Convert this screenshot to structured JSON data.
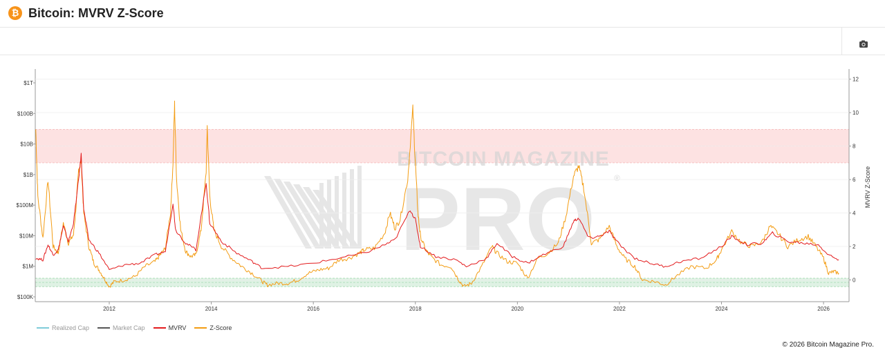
{
  "header": {
    "title": "Bitcoin: MVRV Z-Score",
    "logo_glyph": "₿",
    "logo_color": "#f7931a"
  },
  "toolbar": {
    "camera_icon": "camera-icon"
  },
  "watermark": {
    "top_text": "BITCOIN MAGAZINE",
    "main_text": "PRO",
    "mark": "®"
  },
  "legend": {
    "items": [
      {
        "label": "Realized Cap",
        "color": "#7ecbd9",
        "visible": false
      },
      {
        "label": "Market Cap",
        "color": "#555555",
        "visible": false
      },
      {
        "label": "MVRV",
        "color": "#e31a1c",
        "visible": true
      },
      {
        "label": "Z-Score",
        "color": "#f39c12",
        "visible": true
      }
    ]
  },
  "footer": {
    "copyright": "© 2026 Bitcoin Magazine Pro."
  },
  "chart_data": {
    "type": "line",
    "x_range": [
      2010.55,
      2026.5
    ],
    "x_ticks": [
      "2012",
      "2014",
      "2016",
      "2018",
      "2020",
      "2022",
      "2024",
      "2026"
    ],
    "left_axis": {
      "scale": "log",
      "ticks": [
        "$100K",
        "$1M",
        "$10M",
        "$100M",
        "$1B",
        "$10B",
        "$100B",
        "$1T"
      ]
    },
    "right_axis": {
      "label": "MVRV Z-Score",
      "range": [
        -1.3,
        12.4
      ],
      "ticks": [
        "0",
        "2",
        "4",
        "6",
        "8",
        "10",
        "12"
      ]
    },
    "zones": [
      {
        "name": "overvalued",
        "from": 7,
        "to": 9,
        "color": "#fde2e2"
      },
      {
        "name": "undervalued",
        "from": -0.4,
        "to": 0.1,
        "color": "#dff2e4"
      }
    ],
    "series": [
      {
        "name": "Z-Score",
        "color": "#f39c12",
        "points": [
          [
            2010.56,
            9
          ],
          [
            2010.6,
            5
          ],
          [
            2010.7,
            2.5
          ],
          [
            2010.8,
            6
          ],
          [
            2010.9,
            2
          ],
          [
            2011.0,
            1.6
          ],
          [
            2011.1,
            3.4
          ],
          [
            2011.2,
            2.2
          ],
          [
            2011.3,
            2.7
          ],
          [
            2011.35,
            4.4
          ],
          [
            2011.4,
            6.6
          ],
          [
            2011.45,
            7.1
          ],
          [
            2011.5,
            4
          ],
          [
            2011.6,
            2
          ],
          [
            2011.7,
            1
          ],
          [
            2011.8,
            0.6
          ],
          [
            2011.9,
            0.1
          ],
          [
            2012.0,
            -0.4
          ],
          [
            2012.1,
            -0.1
          ],
          [
            2012.3,
            0
          ],
          [
            2012.5,
            0.2
          ],
          [
            2012.7,
            0.8
          ],
          [
            2012.9,
            1.1
          ],
          [
            2013.0,
            1.5
          ],
          [
            2013.1,
            1.9
          ],
          [
            2013.2,
            4
          ],
          [
            2013.25,
            7
          ],
          [
            2013.28,
            10.5
          ],
          [
            2013.32,
            6
          ],
          [
            2013.4,
            3
          ],
          [
            2013.5,
            1.7
          ],
          [
            2013.6,
            1.4
          ],
          [
            2013.7,
            1.5
          ],
          [
            2013.8,
            3
          ],
          [
            2013.9,
            6.5
          ],
          [
            2013.92,
            9.2
          ],
          [
            2013.97,
            5
          ],
          [
            2014.05,
            3
          ],
          [
            2014.2,
            2
          ],
          [
            2014.4,
            1.3
          ],
          [
            2014.6,
            0.8
          ],
          [
            2014.8,
            0.4
          ],
          [
            2015.0,
            -0.1
          ],
          [
            2015.1,
            -0.3
          ],
          [
            2015.3,
            -0.2
          ],
          [
            2015.5,
            -0.2
          ],
          [
            2015.7,
            0
          ],
          [
            2015.9,
            0.4
          ],
          [
            2016.1,
            0.6
          ],
          [
            2016.3,
            0.7
          ],
          [
            2016.5,
            1.2
          ],
          [
            2016.7,
            1.3
          ],
          [
            2016.9,
            1.6
          ],
          [
            2017.0,
            1.8
          ],
          [
            2017.2,
            1.9
          ],
          [
            2017.4,
            2.8
          ],
          [
            2017.5,
            4
          ],
          [
            2017.6,
            3.1
          ],
          [
            2017.7,
            3.6
          ],
          [
            2017.85,
            6
          ],
          [
            2017.95,
            10.2
          ],
          [
            2018.0,
            7
          ],
          [
            2018.05,
            4
          ],
          [
            2018.1,
            2.6
          ],
          [
            2018.2,
            1.8
          ],
          [
            2018.3,
            1.4
          ],
          [
            2018.5,
            0.9
          ],
          [
            2018.7,
            0.8
          ],
          [
            2018.85,
            0
          ],
          [
            2018.95,
            -0.4
          ],
          [
            2019.1,
            -0.2
          ],
          [
            2019.3,
            0.8
          ],
          [
            2019.5,
            2
          ],
          [
            2019.6,
            1.6
          ],
          [
            2019.8,
            1.1
          ],
          [
            2020.0,
            1
          ],
          [
            2020.2,
            0.1
          ],
          [
            2020.4,
            1.3
          ],
          [
            2020.6,
            1.6
          ],
          [
            2020.8,
            2.2
          ],
          [
            2020.95,
            3.8
          ],
          [
            2021.1,
            6.2
          ],
          [
            2021.2,
            6.8
          ],
          [
            2021.3,
            5.5
          ],
          [
            2021.45,
            2.2
          ],
          [
            2021.6,
            2.4
          ],
          [
            2021.8,
            3.2
          ],
          [
            2021.95,
            2
          ],
          [
            2022.1,
            1.3
          ],
          [
            2022.3,
            0.8
          ],
          [
            2022.45,
            0
          ],
          [
            2022.7,
            -0.1
          ],
          [
            2022.9,
            -0.3
          ],
          [
            2023.1,
            0.2
          ],
          [
            2023.4,
            0.8
          ],
          [
            2023.7,
            0.7
          ],
          [
            2023.9,
            1.2
          ],
          [
            2024.0,
            1.8
          ],
          [
            2024.2,
            2.9
          ],
          [
            2024.4,
            2.2
          ],
          [
            2024.6,
            2
          ],
          [
            2024.8,
            2.3
          ],
          [
            2024.95,
            3.2
          ],
          [
            2025.1,
            2.8
          ],
          [
            2025.3,
            2
          ],
          [
            2025.5,
            2.4
          ],
          [
            2025.7,
            2.6
          ],
          [
            2025.85,
            2
          ],
          [
            2026.0,
            1.3
          ],
          [
            2026.1,
            0.4
          ],
          [
            2026.2,
            0.5
          ],
          [
            2026.3,
            0.4
          ]
        ]
      },
      {
        "name": "MVRV",
        "color": "#e31a1c",
        "points": [
          [
            2010.56,
            1.3
          ],
          [
            2010.7,
            1.2
          ],
          [
            2010.8,
            2.1
          ],
          [
            2010.9,
            1.5
          ],
          [
            2011.0,
            1.8
          ],
          [
            2011.1,
            3.2
          ],
          [
            2011.2,
            2.3
          ],
          [
            2011.3,
            3.4
          ],
          [
            2011.4,
            6
          ],
          [
            2011.45,
            7.5
          ],
          [
            2011.5,
            4.2
          ],
          [
            2011.6,
            2.4
          ],
          [
            2011.8,
            1.6
          ],
          [
            2012.0,
            0.6
          ],
          [
            2012.3,
            0.9
          ],
          [
            2012.6,
            1
          ],
          [
            2012.9,
            1.5
          ],
          [
            2013.1,
            1.7
          ],
          [
            2013.25,
            4.6
          ],
          [
            2013.3,
            3
          ],
          [
            2013.5,
            2.2
          ],
          [
            2013.7,
            1.8
          ],
          [
            2013.9,
            5.8
          ],
          [
            2013.97,
            3.4
          ],
          [
            2014.2,
            2.3
          ],
          [
            2014.5,
            1.6
          ],
          [
            2014.8,
            1.1
          ],
          [
            2015.0,
            0.7
          ],
          [
            2015.5,
            0.8
          ],
          [
            2016.0,
            1
          ],
          [
            2016.5,
            1.3
          ],
          [
            2017.0,
            1.6
          ],
          [
            2017.4,
            2.1
          ],
          [
            2017.6,
            2.4
          ],
          [
            2017.9,
            4.2
          ],
          [
            2018.0,
            3.6
          ],
          [
            2018.1,
            2
          ],
          [
            2018.4,
            1.4
          ],
          [
            2018.8,
            1.2
          ],
          [
            2019.0,
            0.8
          ],
          [
            2019.4,
            1.3
          ],
          [
            2019.6,
            2.2
          ],
          [
            2019.9,
            1.4
          ],
          [
            2020.2,
            1
          ],
          [
            2020.5,
            1.5
          ],
          [
            2020.9,
            2
          ],
          [
            2021.1,
            3.5
          ],
          [
            2021.2,
            3.7
          ],
          [
            2021.4,
            2.5
          ],
          [
            2021.6,
            2.6
          ],
          [
            2021.8,
            2.9
          ],
          [
            2022.0,
            2.1
          ],
          [
            2022.3,
            1.3
          ],
          [
            2022.6,
            1
          ],
          [
            2022.9,
            0.8
          ],
          [
            2023.2,
            1.1
          ],
          [
            2023.6,
            1.3
          ],
          [
            2024.0,
            2
          ],
          [
            2024.2,
            2.6
          ],
          [
            2024.5,
            2.1
          ],
          [
            2024.8,
            2.2
          ],
          [
            2025.0,
            2.8
          ],
          [
            2025.3,
            2.3
          ],
          [
            2025.6,
            2.2
          ],
          [
            2025.9,
            2.1
          ],
          [
            2026.1,
            1.5
          ],
          [
            2026.3,
            1.2
          ]
        ]
      }
    ]
  }
}
